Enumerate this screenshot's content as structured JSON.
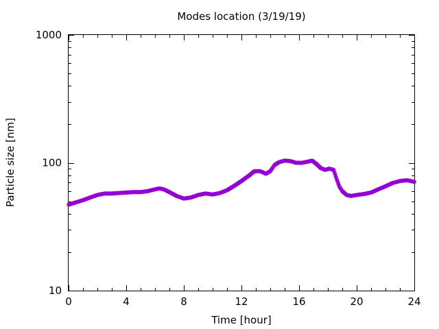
{
  "chart_data": {
    "type": "scatter",
    "title": "Modes location (3/19/19)",
    "xlabel": "Time [hour]",
    "ylabel": "Particle size [nm]",
    "xlim": [
      0,
      24
    ],
    "ylim": [
      10,
      1000
    ],
    "yscale": "log",
    "x_ticks": [
      0,
      4,
      8,
      12,
      16,
      20,
      24
    ],
    "y_ticks": [
      10,
      100,
      1000
    ],
    "grid": false,
    "legend": "none",
    "marker_color": "#9400D3",
    "series": [
      {
        "x": [
          0.0,
          0.5,
          1.0,
          1.5,
          2.0,
          2.5,
          3.0,
          3.5,
          4.0,
          4.5,
          5.0,
          5.5,
          6.0,
          6.3,
          6.6,
          7.0,
          7.5,
          8.0,
          8.5,
          9.0,
          9.5,
          10.0,
          10.5,
          11.0,
          11.5,
          12.0,
          12.5,
          12.9,
          13.3,
          13.7,
          14.0,
          14.3,
          14.6,
          15.0,
          15.4,
          15.8,
          16.2,
          16.6,
          16.9,
          17.2,
          17.5,
          17.8,
          18.1,
          18.4,
          18.6,
          18.8,
          19.0,
          19.3,
          19.6,
          20.0,
          20.5,
          21.0,
          21.5,
          22.0,
          22.5,
          23.0,
          23.5,
          24.0
        ],
        "y": [
          47,
          49,
          51,
          53.5,
          56,
          57.5,
          57.5,
          58,
          58.5,
          59,
          59,
          60,
          62,
          63,
          62,
          59,
          55,
          52.5,
          53.5,
          56,
          57.5,
          56.5,
          58,
          61,
          66,
          72,
          79,
          86,
          86,
          82,
          86,
          96,
          101,
          104,
          103,
          100,
          100,
          102,
          104,
          98,
          91,
          88,
          90,
          88,
          75,
          65,
          60,
          56,
          55,
          56,
          57,
          58.5,
          62,
          65.5,
          69.5,
          72,
          73,
          71
        ]
      }
    ]
  }
}
